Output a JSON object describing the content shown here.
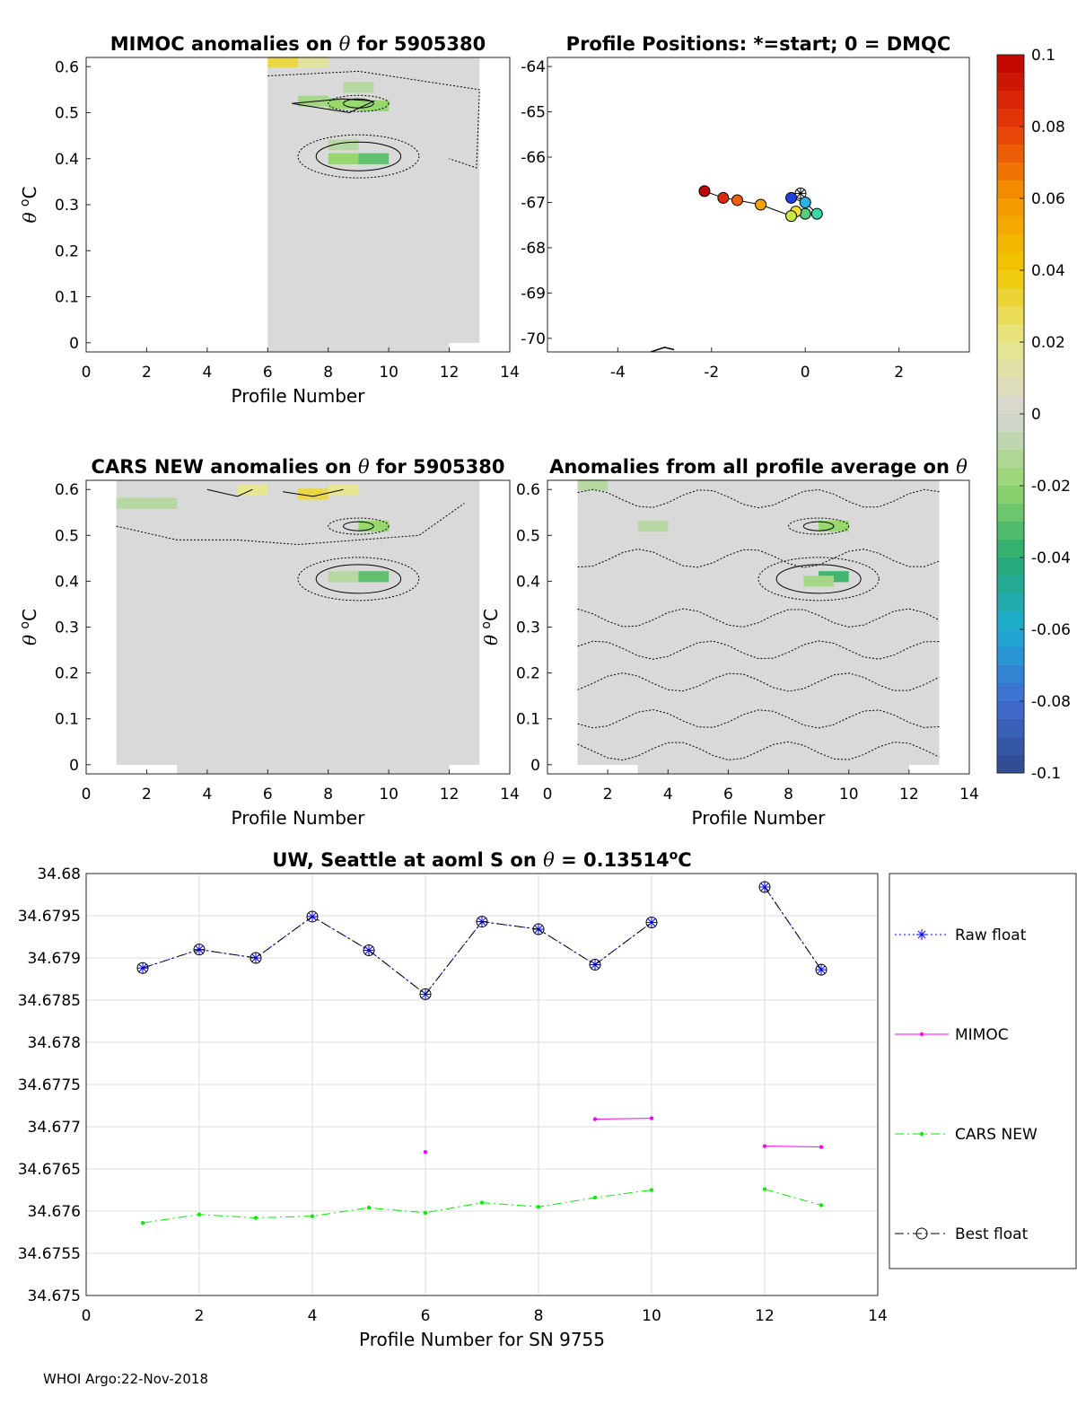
{
  "footer": "WHOI Argo:22-Nov-2018",
  "colorbar": {
    "ticks": [
      "0.1",
      "0.08",
      "0.06",
      "0.04",
      "0.02",
      "0",
      "-0.02",
      "-0.04",
      "-0.06",
      "-0.08",
      "-0.1"
    ],
    "range": [
      -0.1,
      0.1
    ]
  },
  "chart_data": [
    {
      "id": "mimoc",
      "type": "heatmap",
      "title_pre": "MIMOC anomalies on ",
      "title_sym": "θ",
      "title_post": "  for 5905380",
      "xlabel": "Profile Number",
      "ylabel_sym": "θ",
      "ylabel_unit": "C",
      "ylabel_sup": "o",
      "xlim": [
        0,
        14
      ],
      "ylim": [
        -0.02,
        0.62
      ],
      "xticks": [
        "0",
        "2",
        "4",
        "6",
        "8",
        "10",
        "12",
        "14"
      ],
      "yticks": [
        "0",
        "0.1",
        "0.2",
        "0.3",
        "0.4",
        "0.5",
        "0.6"
      ],
      "data_x_range": [
        6,
        13
      ],
      "cells": [
        {
          "x": 6.5,
          "y": 0.61,
          "v": 0.03
        },
        {
          "x": 7.5,
          "y": 0.61,
          "v": 0.015
        },
        {
          "x": 9.0,
          "y": 0.555,
          "v": -0.01
        },
        {
          "x": 7.5,
          "y": 0.525,
          "v": -0.015
        },
        {
          "x": 8.5,
          "y": 0.52,
          "v": -0.02
        },
        {
          "x": 9.5,
          "y": 0.515,
          "v": -0.02
        },
        {
          "x": 8.5,
          "y": 0.4,
          "v": -0.02
        },
        {
          "x": 9.5,
          "y": 0.4,
          "v": -0.03
        },
        {
          "x": 8.5,
          "y": 0.43,
          "v": -0.01
        }
      ]
    },
    {
      "id": "positions",
      "type": "scatter",
      "title": "Profile Positions: *=start; 0 = DMQC",
      "xlim": [
        -5.5,
        3.5
      ],
      "ylim": [
        -70.3,
        -63.8
      ],
      "xticks": [
        "-4",
        "-2",
        "0",
        "2"
      ],
      "yticks": [
        "-64",
        "-65",
        "-66",
        "-67",
        "-68",
        "-69",
        "-70"
      ],
      "start": {
        "x": -0.1,
        "y": -66.8
      },
      "lon": [
        -0.1,
        -0.3,
        0.0,
        0.25,
        0.0,
        -0.2,
        -0.3,
        -0.95,
        -1.45,
        -1.75,
        -2.15
      ],
      "lat": [
        -66.8,
        -66.9,
        -67.0,
        -67.25,
        -67.25,
        -67.2,
        -67.3,
        -67.05,
        -66.95,
        -66.9,
        -66.75
      ],
      "colors": [
        "#ffffff",
        "#1f3fd8",
        "#2ab3e8",
        "#3ad8a8",
        "#54cc7a",
        "#f5e22a",
        "#c8e84a",
        "#f5a300",
        "#ec6010",
        "#dc2a10",
        "#c00000"
      ],
      "coast": [
        [
          -3.3,
          -70.3
        ],
        [
          -3.0,
          -70.2
        ],
        [
          -2.8,
          -70.25
        ]
      ]
    },
    {
      "id": "cars",
      "type": "heatmap",
      "title_pre": "CARS NEW anomalies on ",
      "title_sym": "θ",
      "title_post": " for 5905380",
      "xlabel": "Profile Number",
      "ylabel_sym": "θ",
      "ylabel_unit": "C",
      "ylabel_sup": "o",
      "xlim": [
        0,
        14
      ],
      "ylim": [
        -0.02,
        0.62
      ],
      "xticks": [
        "0",
        "2",
        "4",
        "6",
        "8",
        "10",
        "12",
        "14"
      ],
      "yticks": [
        "0",
        "0.1",
        "0.2",
        "0.3",
        "0.4",
        "0.5",
        "0.6"
      ],
      "data_x_range": [
        1,
        13
      ],
      "cells": [
        {
          "x": 5.5,
          "y": 0.6,
          "v": 0.02
        },
        {
          "x": 7.5,
          "y": 0.59,
          "v": 0.03
        },
        {
          "x": 8.5,
          "y": 0.6,
          "v": 0.02
        },
        {
          "x": 1.5,
          "y": 0.57,
          "v": -0.01
        },
        {
          "x": 2.5,
          "y": 0.57,
          "v": -0.01
        },
        {
          "x": 9.5,
          "y": 0.52,
          "v": -0.02
        },
        {
          "x": 9.5,
          "y": 0.41,
          "v": -0.03
        },
        {
          "x": 8.5,
          "y": 0.41,
          "v": -0.01
        }
      ]
    },
    {
      "id": "anom",
      "type": "heatmap",
      "title_pre": "Anomalies from all profile average on ",
      "title_sym": "θ",
      "title_post": "",
      "xlabel": "Profile Number",
      "ylabel_sym": "θ",
      "ylabel_unit": "C",
      "ylabel_sup": "o",
      "xlim": [
        0,
        14
      ],
      "ylim": [
        -0.02,
        0.62
      ],
      "xticks": [
        "0",
        "2",
        "4",
        "6",
        "8",
        "10",
        "12",
        "14"
      ],
      "yticks": [
        "0",
        "0.1",
        "0.2",
        "0.3",
        "0.4",
        "0.5",
        "0.6"
      ],
      "data_x_range": [
        1,
        13
      ],
      "cells": [
        {
          "x": 9.5,
          "y": 0.52,
          "v": -0.02
        },
        {
          "x": 9.5,
          "y": 0.41,
          "v": -0.035
        },
        {
          "x": 9.0,
          "y": 0.4,
          "v": -0.015
        },
        {
          "x": 1.5,
          "y": 0.61,
          "v": -0.01
        },
        {
          "x": 3.5,
          "y": 0.52,
          "v": -0.01
        }
      ]
    },
    {
      "id": "salinity",
      "type": "line",
      "title_pre": "UW, Seattle at aoml S on ",
      "title_sym": "θ",
      "title_post": " = 0.13514",
      "title_sup": "o",
      "title_unit": "C",
      "xlabel": "Profile Number for SN 9755",
      "xlim": [
        0,
        14
      ],
      "ylim": [
        34.675,
        34.68
      ],
      "xticks": [
        "0",
        "2",
        "4",
        "6",
        "8",
        "10",
        "12",
        "14"
      ],
      "yticks": [
        "34.68",
        "34.6795",
        "34.679",
        "34.6785",
        "34.678",
        "34.6775",
        "34.677",
        "34.6765",
        "34.676",
        "34.6755",
        "34.675"
      ],
      "x": [
        1,
        2,
        3,
        4,
        5,
        6,
        7,
        8,
        9,
        10,
        11,
        12,
        13
      ],
      "series": [
        {
          "name": "Raw float",
          "color": "#0000ff",
          "style": "dotted",
          "marker": "star",
          "values": [
            34.67888,
            34.6791,
            34.679,
            34.67949,
            34.67909,
            34.67857,
            34.67943,
            34.67934,
            34.67892,
            34.67942,
            null,
            34.67984,
            34.67886
          ]
        },
        {
          "name": "MIMOC",
          "color": "#ff00ff",
          "style": "solid",
          "marker": "dot",
          "values": [
            null,
            null,
            null,
            null,
            null,
            34.6767,
            null,
            null,
            34.67709,
            34.6771,
            null,
            34.67677,
            34.67676
          ]
        },
        {
          "name": "CARS NEW",
          "color": "#00ee00",
          "style": "dashdot",
          "marker": "dot",
          "values": [
            34.67586,
            34.67596,
            34.67592,
            34.67594,
            34.67604,
            34.67598,
            34.6761,
            34.67605,
            34.67616,
            34.67625,
            null,
            34.67626,
            34.67607
          ]
        },
        {
          "name": "Best float",
          "color": "#000000",
          "style": "dashdot",
          "marker": "circle",
          "values": [
            34.67888,
            34.6791,
            34.679,
            34.67949,
            34.67909,
            34.67857,
            34.67943,
            34.67934,
            34.67892,
            34.67942,
            null,
            34.67984,
            34.67886
          ]
        }
      ],
      "legend": [
        "Raw float",
        "MIMOC",
        "CARS NEW",
        "Best float"
      ]
    }
  ]
}
